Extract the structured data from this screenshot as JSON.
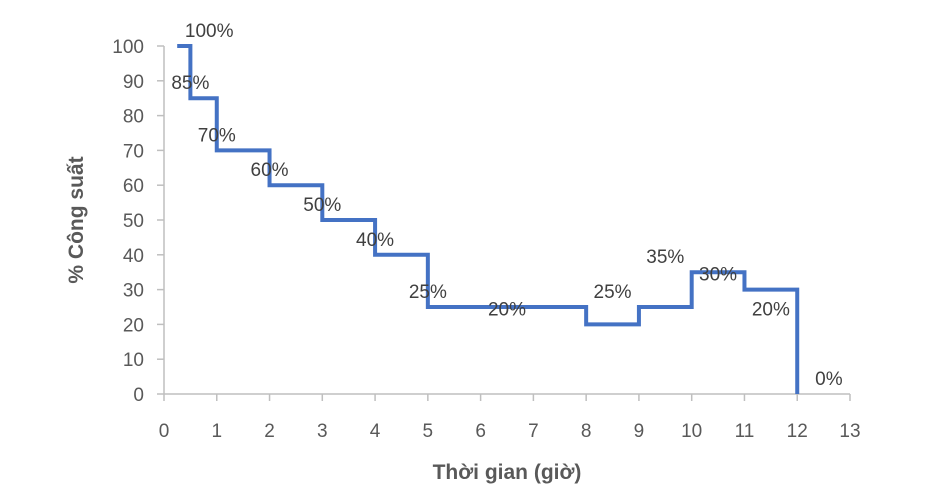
{
  "chart_data": {
    "type": "line",
    "step": true,
    "xlabel": "Thời gian (giờ)",
    "ylabel": "% Công suất",
    "xlim": [
      0,
      13
    ],
    "ylim": [
      0,
      100
    ],
    "x_ticks": [
      "0",
      "1",
      "2",
      "3",
      "4",
      "5",
      "6",
      "7",
      "8",
      "9",
      "10",
      "11",
      "12",
      "13"
    ],
    "y_ticks": [
      "0",
      "10",
      "20",
      "30",
      "40",
      "50",
      "60",
      "70",
      "80",
      "90",
      "100"
    ],
    "grid": false,
    "legend": "none",
    "series": [
      {
        "color": "#4472c4",
        "points": [
          {
            "x": 0.25,
            "y": 100
          },
          {
            "x": 0.5,
            "y": 85
          },
          {
            "x": 1,
            "y": 70
          },
          {
            "x": 2,
            "y": 60
          },
          {
            "x": 3,
            "y": 50
          },
          {
            "x": 4,
            "y": 40
          },
          {
            "x": 5,
            "y": 25
          },
          {
            "x": 8,
            "y": 20
          },
          {
            "x": 9,
            "y": 25
          },
          {
            "x": 10,
            "y": 35
          },
          {
            "x": 11,
            "y": 30
          },
          {
            "x": 12,
            "y": 20
          },
          {
            "x": 12,
            "y": 0
          }
        ]
      }
    ],
    "data_labels": [
      {
        "text": "100%",
        "x": 0.25,
        "y": 100
      },
      {
        "text": "85%",
        "x": 0.5,
        "y": 85
      },
      {
        "text": "70%",
        "x": 1.0,
        "y": 70
      },
      {
        "text": "60%",
        "x": 2.0,
        "y": 60
      },
      {
        "text": "50%",
        "x": 3.0,
        "y": 50
      },
      {
        "text": "40%",
        "x": 4.0,
        "y": 40
      },
      {
        "text": "25%",
        "x": 5.0,
        "y": 25
      },
      {
        "text": "20%",
        "x": 6.5,
        "y": 20
      },
      {
        "text": "25%",
        "x": 8.5,
        "y": 25
      },
      {
        "text": "35%",
        "x": 9.5,
        "y": 35
      },
      {
        "text": "30%",
        "x": 10.5,
        "y": 30
      },
      {
        "text": "20%",
        "x": 11.5,
        "y": 20
      },
      {
        "text": "0%",
        "x": 12.6,
        "y": 0
      }
    ]
  }
}
